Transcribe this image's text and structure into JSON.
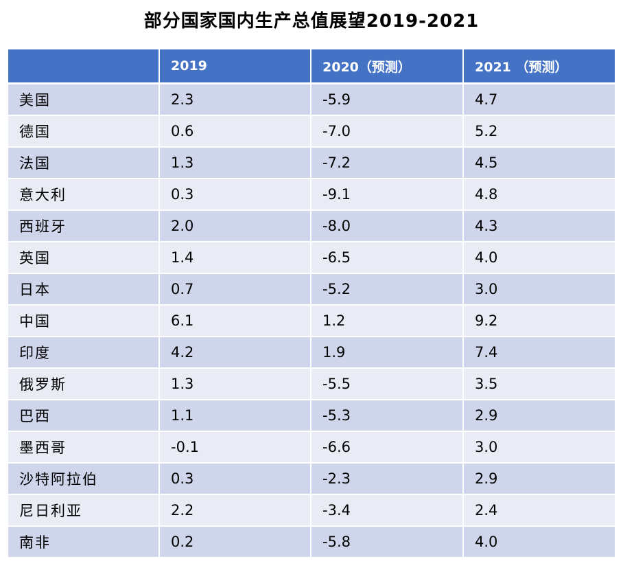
{
  "chart_data": {
    "type": "table",
    "title": "部分国家国内生产总值展望2019-2021",
    "columns": [
      "",
      "2019",
      "2020（预测）",
      "2021 （预测）"
    ],
    "rows": [
      [
        "美国",
        "2.3",
        "-5.9",
        "4.7"
      ],
      [
        "德国",
        "0.6",
        "-7.0",
        "5.2"
      ],
      [
        "法国",
        "1.3",
        "-7.2",
        "4.5"
      ],
      [
        "意大利",
        "0.3",
        "-9.1",
        "4.8"
      ],
      [
        "西班牙",
        "2.0",
        "-8.0",
        "4.3"
      ],
      [
        "英国",
        "1.4",
        "-6.5",
        "4.0"
      ],
      [
        "日本",
        "0.7",
        "-5.2",
        "3.0"
      ],
      [
        "中国",
        "6.1",
        "1.2",
        "9.2"
      ],
      [
        "印度",
        "4.2",
        "1.9",
        "7.4"
      ],
      [
        "俄罗斯",
        "1.3",
        "-5.5",
        "3.5"
      ],
      [
        "巴西",
        "1.1",
        "-5.3",
        "2.9"
      ],
      [
        "墨西哥",
        "-0.1",
        "-6.6",
        "3.0"
      ],
      [
        "沙特阿拉伯",
        "0.3",
        "-2.3",
        "2.9"
      ],
      [
        "尼日利亚",
        "2.2",
        "-3.4",
        "2.4"
      ],
      [
        "南非",
        "0.2",
        "-5.8",
        "4.0"
      ]
    ]
  },
  "colors": {
    "header_bg": "#4472c4",
    "header_text": "#ffffff",
    "row_odd_bg": "#cfd5ea",
    "row_even_bg": "#e9ebf5"
  }
}
